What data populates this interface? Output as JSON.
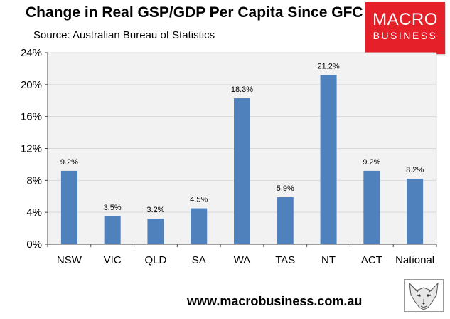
{
  "header": {
    "title": "Change in Real GSP/GDP Per Capita Since GFC",
    "subtitle": "Source: Australian Bureau of Statistics"
  },
  "logo": {
    "line1": "MACRO",
    "line2": "BUSINESS",
    "color": "#e52028"
  },
  "footer": {
    "website": "www.macrobusiness.com.au"
  },
  "colors": {
    "bar": "#4f81bd",
    "plot_background": "#f2f2f2",
    "gridline": "#d9d9d9"
  },
  "chart_data": {
    "type": "bar",
    "title": "Change in Real GSP/GDP Per Capita Since GFC",
    "xlabel": "",
    "ylabel": "",
    "categories": [
      "NSW",
      "VIC",
      "QLD",
      "SA",
      "WA",
      "TAS",
      "NT",
      "ACT",
      "National"
    ],
    "values": [
      9.2,
      3.5,
      3.2,
      4.5,
      18.3,
      5.9,
      21.2,
      9.2,
      8.2
    ],
    "data_labels": [
      "9.2%",
      "3.5%",
      "3.2%",
      "4.5%",
      "18.3%",
      "5.9%",
      "21.2%",
      "9.2%",
      "8.2%"
    ],
    "ylim": [
      0,
      24
    ],
    "yticks": [
      0,
      4,
      8,
      12,
      16,
      20,
      24
    ],
    "ytick_labels": [
      "0%",
      "4%",
      "8%",
      "12%",
      "16%",
      "20%",
      "24%"
    ],
    "grid": true,
    "legend": "none"
  }
}
